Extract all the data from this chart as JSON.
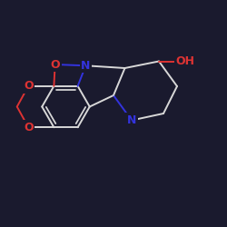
{
  "background_color": "#1a1a2e",
  "bond_color": "#d8d8d8",
  "atom_colors": {
    "O": "#dd3333",
    "N": "#3333dd",
    "C": "#d8d8d8"
  },
  "figsize": [
    2.5,
    2.5
  ],
  "dpi": 100,
  "lw": 1.4,
  "fontsize": 9
}
